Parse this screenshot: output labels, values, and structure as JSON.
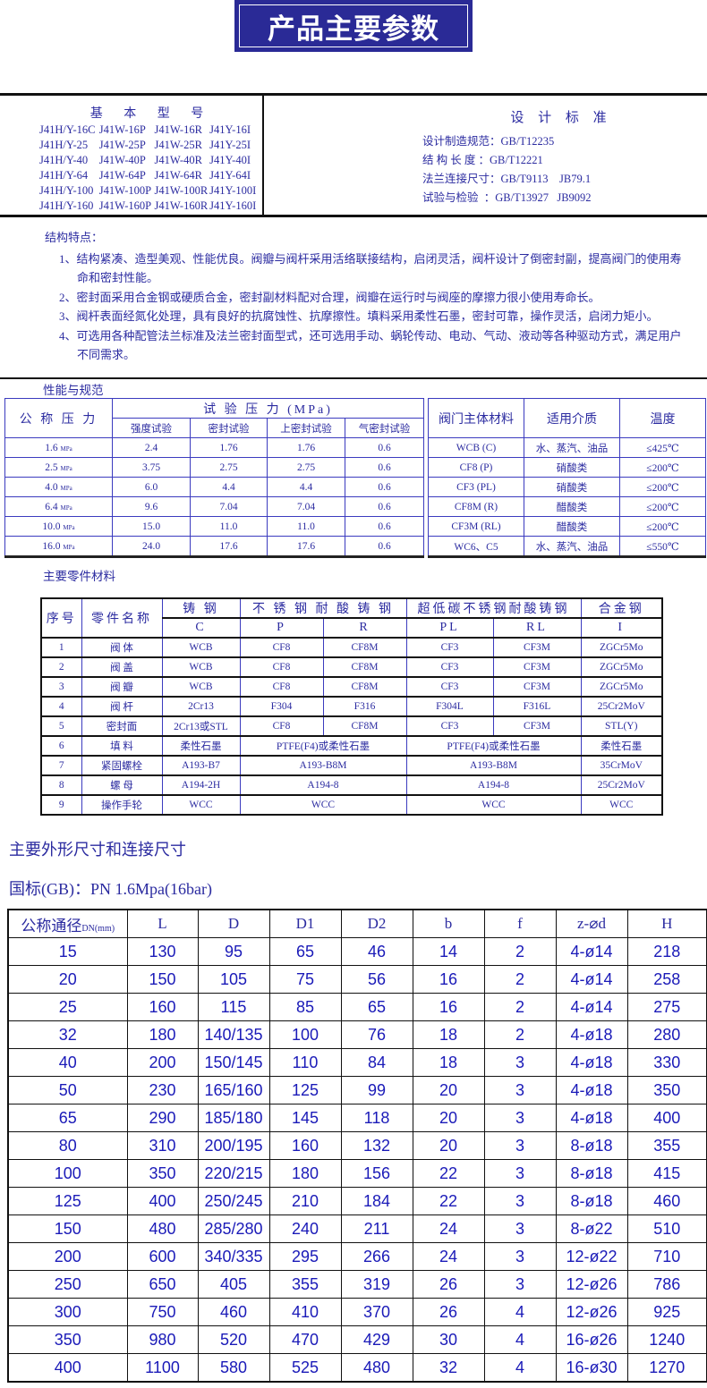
{
  "banner_title": "产品主要参数",
  "models": {
    "title": "基 本 型 号",
    "rows": [
      [
        "J41H/Y-16C",
        "J41W-16P",
        "J41W-16R",
        "J41Y-16I"
      ],
      [
        "J41H/Y-25",
        "J41W-25P",
        "J41W-25R",
        "J41Y-25I"
      ],
      [
        "J41H/Y-40",
        "J41W-40P",
        "J41W-40R",
        "J41Y-40I"
      ],
      [
        "J41H/Y-64",
        "J41W-64P",
        "J41W-64R",
        "J41Y-64I"
      ],
      [
        "J41H/Y-100",
        "J41W-100P",
        "J41W-100R",
        "J41Y-100I"
      ],
      [
        "J41H/Y-160",
        "J41W-160P",
        "J41W-160R",
        "J41Y-160I"
      ]
    ]
  },
  "standards": {
    "title": "设 计 标 准",
    "items": [
      "设计制造规范：GB/T12235",
      "结 构 长 度 ：GB/T12221",
      "法兰连接尺寸：GB/T9113    JB79.1",
      "试验与检验  ：GB/T13927   JB9092"
    ]
  },
  "features": {
    "title": "结构特点：",
    "items": [
      "1、结构紧凑、造型美观、性能优良。阀瓣与阀杆采用活络联接结构，启闭灵活，阀杆设计了倒密封副，提高阀门的使用寿命和密封性能。",
      "2、密封面采用合金钢或硬质合金，密封副材料配对合理，阀瓣在运行时与阀座的摩擦力很小使用寿命长。",
      "3、阀杆表面经氮化处理，具有良好的抗腐蚀性、抗摩擦性。填料采用柔性石墨，密封可靠，操作灵活，启闭力矩小。",
      "4、可选用各种配管法兰标准及法兰密封面型式，还可选用手动、蜗轮传动、电动、气动、液动等各种驱动方式，满足用户不同需求。"
    ]
  },
  "performance": {
    "title": "性能与规范",
    "nominal_header": "公 称 压 力",
    "test_header": "试 验 压 力 (MPa)",
    "sub_headers": [
      "强度试验",
      "密封试验",
      "上密封试验",
      "气密封试验"
    ],
    "unit": "MPa",
    "rows": [
      [
        "1.6",
        "2.4",
        "1.76",
        "1.76",
        "0.6"
      ],
      [
        "2.5",
        "3.75",
        "2.75",
        "2.75",
        "0.6"
      ],
      [
        "4.0",
        "6.0",
        "4.4",
        "4.4",
        "0.6"
      ],
      [
        "6.4",
        "9.6",
        "7.04",
        "7.04",
        "0.6"
      ],
      [
        "10.0",
        "15.0",
        "11.0",
        "11.0",
        "0.6"
      ],
      [
        "16.0",
        "24.0",
        "17.6",
        "17.6",
        "0.6"
      ]
    ],
    "material_headers": [
      "阀门主体材料",
      "适用介质",
      "温度"
    ],
    "material_rows": [
      [
        "WCB (C)",
        "水、蒸汽、油品",
        "≤425℃"
      ],
      [
        "CF8 (P)",
        "硝酸类",
        "≤200℃"
      ],
      [
        "CF3 (PL)",
        "硝酸类",
        "≤200℃"
      ],
      [
        "CF8M (R)",
        "醋酸类",
        "≤200℃"
      ],
      [
        "CF3M (RL)",
        "醋酸类",
        "≤200℃"
      ],
      [
        "WC6、C5",
        "水、蒸汽、油品",
        "≤550℃"
      ]
    ]
  },
  "parts": {
    "title": "主要零件材料",
    "headers": [
      "序号",
      "零件名称",
      "铸  钢",
      "不 锈 钢 耐 酸 铸 钢",
      "超低碳不锈钢耐酸铸钢",
      "合金钢"
    ],
    "codes": [
      "C",
      "P",
      "R",
      "PL",
      "RL",
      "I"
    ],
    "rows": [
      [
        "1",
        "阀  体",
        "WCB",
        "CF8",
        "CF8M",
        "CF3",
        "CF3M",
        "ZGCr5Mo"
      ],
      [
        "2",
        "阀  盖",
        "WCB",
        "CF8",
        "CF8M",
        "CF3",
        "CF3M",
        "ZGCr5Mo"
      ],
      [
        "3",
        "阀  瓣",
        "WCB",
        "CF8",
        "CF8M",
        "CF3",
        "CF3M",
        "ZGCr5Mo"
      ],
      [
        "4",
        "阀  杆",
        "2Cr13",
        "F304",
        "F316",
        "F304L",
        "F316L",
        "25Cr2MoV"
      ],
      [
        "5",
        "密封面",
        "2Cr13或STL",
        "CF8",
        "CF8M",
        "CF3",
        "CF3M",
        "STL(Y)"
      ],
      [
        "6",
        "填  料",
        "柔性石墨",
        "PTFE(F4)或柔性石墨",
        "PTFE(F4)或柔性石墨",
        "柔性石墨"
      ],
      [
        "7",
        "紧固螺栓",
        "A193-B7",
        "A193-B8M",
        "A193-B8M",
        "35CrMoV"
      ],
      [
        "8",
        "螺  母",
        "A194-2H",
        "A194-8",
        "A194-8",
        "25Cr2MoV"
      ],
      [
        "9",
        "操作手轮",
        "WCC",
        "WCC",
        "WCC",
        "WCC"
      ]
    ]
  },
  "dimensions": {
    "title": "主要外形尺寸和连接尺寸",
    "subtitle": "国标(GB)：PN 1.6Mpa(16bar)",
    "headers": [
      "公称通径",
      "L",
      "D",
      "D1",
      "D2",
      "b",
      "f",
      "z-⌀d",
      "H"
    ],
    "dn_unit": "DN(mm)",
    "rows": [
      [
        "15",
        "130",
        "95",
        "65",
        "46",
        "14",
        "2",
        "4-ø14",
        "218"
      ],
      [
        "20",
        "150",
        "105",
        "75",
        "56",
        "16",
        "2",
        "4-ø14",
        "258"
      ],
      [
        "25",
        "160",
        "115",
        "85",
        "65",
        "16",
        "2",
        "4-ø14",
        "275"
      ],
      [
        "32",
        "180",
        "140/135",
        "100",
        "76",
        "18",
        "2",
        "4-ø18",
        "280"
      ],
      [
        "40",
        "200",
        "150/145",
        "110",
        "84",
        "18",
        "3",
        "4-ø18",
        "330"
      ],
      [
        "50",
        "230",
        "165/160",
        "125",
        "99",
        "20",
        "3",
        "4-ø18",
        "350"
      ],
      [
        "65",
        "290",
        "185/180",
        "145",
        "118",
        "20",
        "3",
        "4-ø18",
        "400"
      ],
      [
        "80",
        "310",
        "200/195",
        "160",
        "132",
        "20",
        "3",
        "8-ø18",
        "355"
      ],
      [
        "100",
        "350",
        "220/215",
        "180",
        "156",
        "22",
        "3",
        "8-ø18",
        "415"
      ],
      [
        "125",
        "400",
        "250/245",
        "210",
        "184",
        "22",
        "3",
        "8-ø18",
        "460"
      ],
      [
        "150",
        "480",
        "285/280",
        "240",
        "211",
        "24",
        "3",
        "8-ø22",
        "510"
      ],
      [
        "200",
        "600",
        "340/335",
        "295",
        "266",
        "24",
        "3",
        "12-ø22",
        "710"
      ],
      [
        "250",
        "650",
        "405",
        "355",
        "319",
        "26",
        "3",
        "12-ø26",
        "786"
      ],
      [
        "300",
        "750",
        "460",
        "410",
        "370",
        "26",
        "4",
        "12-ø26",
        "925"
      ],
      [
        "350",
        "980",
        "520",
        "470",
        "429",
        "30",
        "4",
        "16-ø26",
        "1240"
      ],
      [
        "400",
        "1100",
        "580",
        "525",
        "480",
        "32",
        "4",
        "16-ø30",
        "1270"
      ]
    ]
  },
  "colors": {
    "banner": "#2a2a96",
    "text": "#2b2ba0",
    "grid": "#3b3bbf",
    "dim_text": "#1a1ab8"
  }
}
